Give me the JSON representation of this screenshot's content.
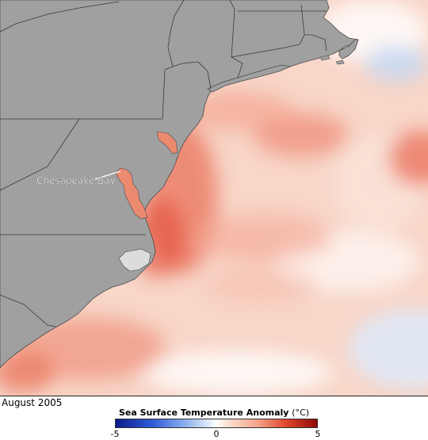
{
  "map": {
    "feature_label": "Chesapeake Bay",
    "date": "August 2005"
  },
  "legend": {
    "title": "Sea Surface Temperature Anomaly",
    "unit": "(°C)",
    "min_label": "-5",
    "mid_label": "0",
    "max_label": "5",
    "range": [
      -5,
      5
    ]
  },
  "colors": {
    "land": "#a0a0a0",
    "borders": "#3a3a3a",
    "ocean_base": "#f6cdbd",
    "warm_strong": "#e55d45",
    "cool": "#c6d9f3"
  }
}
